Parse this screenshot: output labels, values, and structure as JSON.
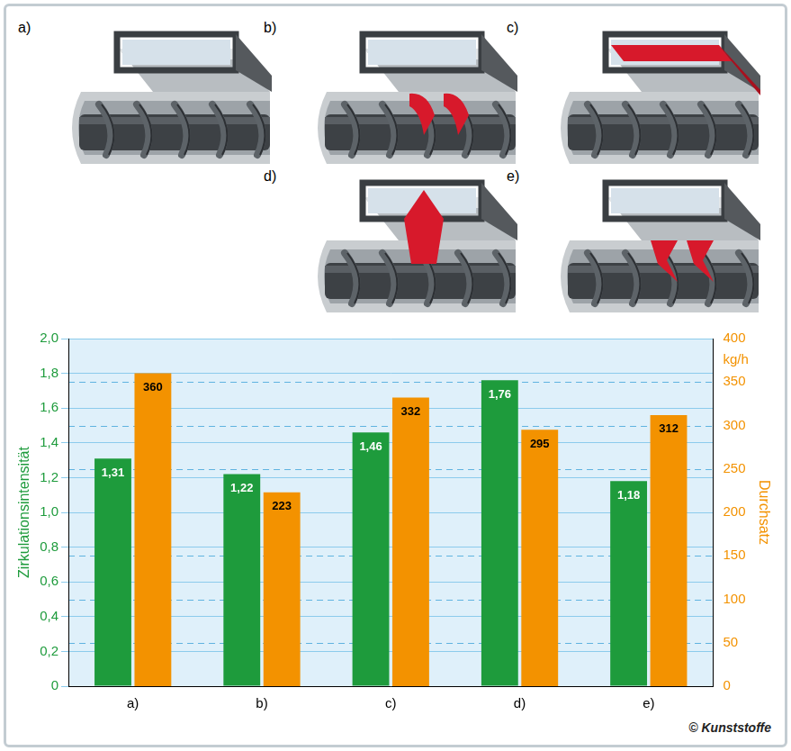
{
  "chart_data": {
    "type": "bar",
    "categories": [
      "a)",
      "b)",
      "c)",
      "d)",
      "e)"
    ],
    "ylabel": "Zirkulationsintensität",
    "y2label": "Durchsatz",
    "ylim": [
      0,
      2
    ],
    "yticks": [
      0,
      {
        "value": 0.2,
        "label": "0,2"
      },
      {
        "value": 0.4,
        "label": "0,4"
      },
      {
        "value": 0.6,
        "label": "0,6"
      },
      {
        "value": 0.8,
        "label": "0,8"
      },
      {
        "value": 1,
        "label": "1,0"
      },
      {
        "value": 1.2,
        "label": "1,2"
      },
      {
        "value": 1.4,
        "label": "1,4"
      },
      {
        "value": 1.6,
        "label": "1,6"
      },
      {
        "value": 1.8,
        "label": "1,8"
      },
      {
        "value": 2,
        "label": "2,0"
      }
    ],
    "y2lim": [
      0,
      400
    ],
    "y2ticks": [
      0,
      50,
      100,
      150,
      200,
      250,
      300,
      350,
      {
        "value": 375,
        "label": "kg/h"
      },
      400
    ],
    "grid": true,
    "data_labels": true,
    "series": [
      {
        "name": "Zirkulationsintensität",
        "color": "#1e9b3c",
        "values": [
          1.31,
          1.22,
          1.46,
          1.76,
          1.18
        ],
        "value_labels": [
          "1,31",
          "1,22",
          "1,46",
          "1,76",
          "1,18"
        ]
      },
      {
        "name": "Durchsatz",
        "color": "#f39200",
        "axis": "y2",
        "values": [
          360,
          223,
          332,
          295,
          312
        ]
      }
    ],
    "source": "© Kunststoffe"
  }
}
